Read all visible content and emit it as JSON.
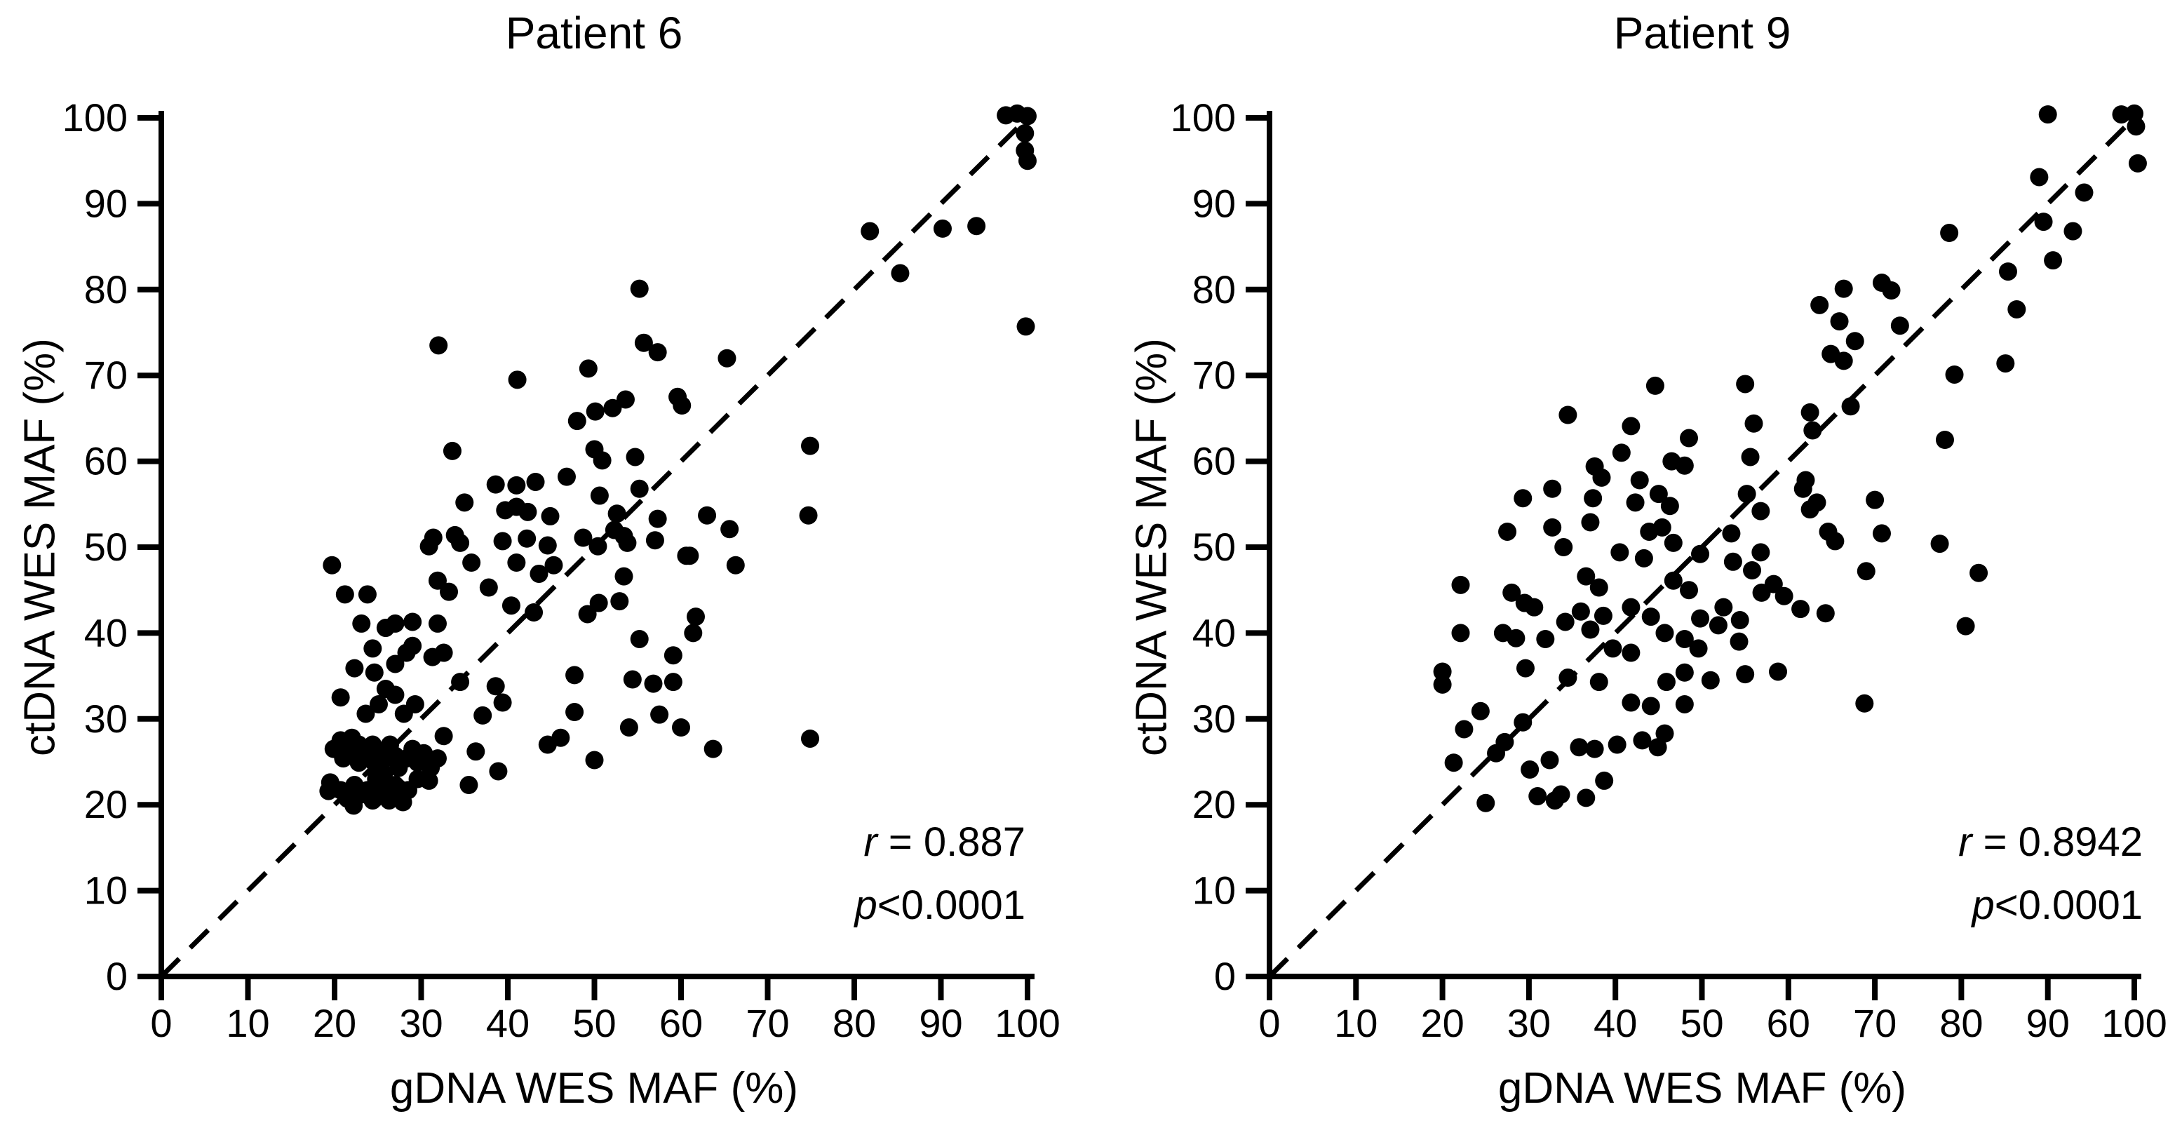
{
  "figure": {
    "background": "#ffffff",
    "ink_color": "#000000",
    "marker_color": "#000000"
  },
  "chart_data": [
    {
      "type": "scatter",
      "title": "Patient 6",
      "xlabel": "gDNA WES MAF (%)",
      "ylabel": "ctDNA WES MAF (%)",
      "xlim": [
        0,
        100
      ],
      "ylim": [
        0,
        100
      ],
      "xticks": [
        0,
        10,
        20,
        30,
        40,
        50,
        60,
        70,
        80,
        90,
        100
      ],
      "yticks": [
        0,
        10,
        20,
        30,
        40,
        50,
        60,
        70,
        80,
        90,
        100
      ],
      "grid": false,
      "identity_line": {
        "style": "dashed",
        "from": [
          0,
          0
        ],
        "to": [
          100,
          100
        ]
      },
      "annotation": {
        "line1": {
          "lead": "r",
          "rest": " = 0.887"
        },
        "line2": {
          "lead": "p",
          "rest": "<0.0001"
        }
      },
      "points": [
        [
          97.5,
          100.3
        ],
        [
          98.8,
          100.5
        ],
        [
          100,
          100.2
        ],
        [
          99.7,
          98.2
        ],
        [
          99.7,
          96.2
        ],
        [
          100,
          95
        ],
        [
          99.8,
          75.7
        ],
        [
          81.8,
          86.8
        ],
        [
          90.2,
          87.1
        ],
        [
          94.1,
          87.4
        ],
        [
          85.3,
          81.9
        ],
        [
          32,
          73.5
        ],
        [
          41.1,
          69.5
        ],
        [
          49.3,
          70.8
        ],
        [
          50.1,
          65.8
        ],
        [
          48,
          64.7
        ],
        [
          50,
          61.4
        ],
        [
          50.9,
          60.1
        ],
        [
          33.6,
          61.2
        ],
        [
          55.2,
          80.1
        ],
        [
          55.7,
          73.8
        ],
        [
          57.3,
          72.7
        ],
        [
          65.3,
          72
        ],
        [
          53.6,
          67.2
        ],
        [
          59.6,
          67.5
        ],
        [
          60.1,
          66.5
        ],
        [
          52.1,
          66.2
        ],
        [
          74.9,
          61.8
        ],
        [
          54.7,
          60.5
        ],
        [
          46.8,
          58.2
        ],
        [
          38.6,
          57.3
        ],
        [
          41,
          57.2
        ],
        [
          43.2,
          57.6
        ],
        [
          35,
          55.2
        ],
        [
          39.7,
          54.3
        ],
        [
          41,
          54.7
        ],
        [
          42.3,
          54.1
        ],
        [
          44.9,
          53.6
        ],
        [
          50.6,
          56
        ],
        [
          31.4,
          51.1
        ],
        [
          33.9,
          51.4
        ],
        [
          34.5,
          50.5
        ],
        [
          39.4,
          50.7
        ],
        [
          42.2,
          51
        ],
        [
          44.6,
          50.2
        ],
        [
          48.7,
          51.1
        ],
        [
          50.4,
          50.1
        ],
        [
          30.9,
          50.1
        ],
        [
          74.7,
          53.7
        ],
        [
          63,
          53.7
        ],
        [
          65.6,
          52.1
        ],
        [
          53.4,
          51.3
        ],
        [
          57,
          50.8
        ],
        [
          55.2,
          56.8
        ],
        [
          52.6,
          53.9
        ],
        [
          57.3,
          53.3
        ],
        [
          53.8,
          50.5
        ],
        [
          52.3,
          52
        ],
        [
          19.7,
          47.9
        ],
        [
          35.8,
          48.2
        ],
        [
          37.8,
          45.3
        ],
        [
          31.9,
          46.1
        ],
        [
          33.2,
          44.8
        ],
        [
          41,
          48.2
        ],
        [
          43.6,
          46.9
        ],
        [
          45.3,
          47.9
        ],
        [
          21.2,
          44.5
        ],
        [
          23.8,
          44.5
        ],
        [
          60.6,
          49
        ],
        [
          61,
          49
        ],
        [
          66.3,
          47.9
        ],
        [
          53.4,
          46.6
        ],
        [
          52.9,
          43.7
        ],
        [
          23.1,
          41.1
        ],
        [
          25.9,
          40.6
        ],
        [
          27,
          41.1
        ],
        [
          29,
          41.3
        ],
        [
          31.9,
          41.1
        ],
        [
          40.4,
          43.2
        ],
        [
          43,
          42.4
        ],
        [
          49.2,
          42.2
        ],
        [
          50.5,
          43.5
        ],
        [
          55.2,
          39.3
        ],
        [
          61.7,
          41.9
        ],
        [
          61.4,
          40
        ],
        [
          22.3,
          35.9
        ],
        [
          24.4,
          38.2
        ],
        [
          24.6,
          35.4
        ],
        [
          27,
          36.4
        ],
        [
          28.3,
          37.7
        ],
        [
          29,
          38.5
        ],
        [
          31.3,
          37.2
        ],
        [
          32.6,
          37.7
        ],
        [
          34.5,
          34.3
        ],
        [
          38.6,
          33.8
        ],
        [
          47.7,
          35.1
        ],
        [
          59.1,
          37.4
        ],
        [
          20.7,
          32.5
        ],
        [
          23.6,
          30.6
        ],
        [
          25.1,
          31.7
        ],
        [
          25.9,
          33.5
        ],
        [
          27,
          32.8
        ],
        [
          28,
          30.6
        ],
        [
          29.3,
          31.7
        ],
        [
          37.1,
          30.4
        ],
        [
          39.4,
          31.9
        ],
        [
          54.4,
          34.6
        ],
        [
          56.8,
          34.1
        ],
        [
          59.1,
          34.3
        ],
        [
          57.5,
          30.5
        ],
        [
          60,
          29
        ],
        [
          54,
          29
        ],
        [
          47.7,
          30.8
        ],
        [
          19.9,
          26.5
        ],
        [
          20.7,
          27.5
        ],
        [
          21,
          25.4
        ],
        [
          21.8,
          26.5
        ],
        [
          22,
          27.8
        ],
        [
          22.8,
          27
        ],
        [
          22.8,
          24.9
        ],
        [
          23.6,
          26
        ],
        [
          24.4,
          27
        ],
        [
          24.6,
          24.9
        ],
        [
          25.4,
          26.2
        ],
        [
          25.9,
          25.4
        ],
        [
          26.4,
          27
        ],
        [
          27,
          25.7
        ],
        [
          27.4,
          24.3
        ],
        [
          28.3,
          25.4
        ],
        [
          29,
          26.5
        ],
        [
          29.6,
          24.9
        ],
        [
          30.3,
          26
        ],
        [
          31.1,
          24.3
        ],
        [
          31.9,
          25.4
        ],
        [
          32.6,
          28
        ],
        [
          36.3,
          26.2
        ],
        [
          44.6,
          27
        ],
        [
          46.1,
          27.8
        ],
        [
          50,
          25.2
        ],
        [
          63.7,
          26.5
        ],
        [
          74.9,
          27.7
        ],
        [
          20.7,
          21.7
        ],
        [
          21.5,
          20.7
        ],
        [
          22.3,
          22.3
        ],
        [
          23.1,
          21.2
        ],
        [
          23.8,
          21.7
        ],
        [
          24.6,
          20.7
        ],
        [
          25.4,
          22
        ],
        [
          26.2,
          21.2
        ],
        [
          27,
          22.3
        ],
        [
          27.7,
          20.7
        ],
        [
          28.5,
          21.7
        ],
        [
          19.5,
          22.6
        ],
        [
          19.3,
          21.6
        ],
        [
          21.5,
          21.3
        ],
        [
          22.2,
          19.9
        ],
        [
          24.4,
          20.5
        ],
        [
          26.3,
          20.5
        ],
        [
          27.9,
          20.3
        ],
        [
          27.3,
          22
        ],
        [
          24.8,
          23
        ],
        [
          25.7,
          23.6
        ],
        [
          29.6,
          23
        ],
        [
          30.9,
          22.8
        ],
        [
          35.5,
          22.3
        ],
        [
          38.9,
          23.9
        ]
      ]
    },
    {
      "type": "scatter",
      "title": "Patient 9",
      "xlabel": "gDNA WES MAF (%)",
      "ylabel": "ctDNA WES MAF (%)",
      "xlim": [
        0,
        100
      ],
      "ylim": [
        0,
        100
      ],
      "xticks": [
        0,
        10,
        20,
        30,
        40,
        50,
        60,
        70,
        80,
        90,
        100
      ],
      "yticks": [
        0,
        10,
        20,
        30,
        40,
        50,
        60,
        70,
        80,
        90,
        100
      ],
      "grid": false,
      "identity_line": {
        "style": "dashed",
        "from": [
          0,
          0
        ],
        "to": [
          100,
          100
        ]
      },
      "annotation": {
        "line1": {
          "lead": "r",
          "rest": " = 0.8942"
        },
        "line2": {
          "lead": "p",
          "rest": "<0.0001"
        }
      },
      "points": [
        [
          90,
          100.4
        ],
        [
          98.5,
          100.4
        ],
        [
          100,
          100.5
        ],
        [
          100.2,
          99
        ],
        [
          100.4,
          94.7
        ],
        [
          89,
          93.1
        ],
        [
          94.2,
          91.3
        ],
        [
          89.5,
          87.9
        ],
        [
          92.9,
          86.8
        ],
        [
          90.6,
          83.4
        ],
        [
          85.4,
          82.1
        ],
        [
          78.6,
          86.6
        ],
        [
          86.4,
          77.7
        ],
        [
          66.4,
          80.1
        ],
        [
          70.8,
          80.8
        ],
        [
          71.9,
          79.9
        ],
        [
          63.6,
          78.2
        ],
        [
          65.9,
          76.3
        ],
        [
          72.9,
          75.8
        ],
        [
          67.7,
          74
        ],
        [
          64.9,
          72.5
        ],
        [
          66.4,
          71.7
        ],
        [
          85.1,
          71.4
        ],
        [
          79.2,
          70.1
        ],
        [
          67.2,
          66.4
        ],
        [
          78.1,
          62.5
        ],
        [
          55,
          69
        ],
        [
          56,
          64.4
        ],
        [
          55.6,
          60.5
        ],
        [
          62.5,
          65.7
        ],
        [
          62.8,
          63.6
        ],
        [
          44.6,
          68.8
        ],
        [
          34.5,
          65.4
        ],
        [
          41.8,
          64.1
        ],
        [
          40.7,
          61
        ],
        [
          37.6,
          59.4
        ],
        [
          38.4,
          58.1
        ],
        [
          48.5,
          62.7
        ],
        [
          46.5,
          60
        ],
        [
          48,
          59.5
        ],
        [
          42.8,
          57.8
        ],
        [
          45,
          56.2
        ],
        [
          46.3,
          54.8
        ],
        [
          29.3,
          55.7
        ],
        [
          32.7,
          56.8
        ],
        [
          37.4,
          55.7
        ],
        [
          42.3,
          55.2
        ],
        [
          32.7,
          52.3
        ],
        [
          37.1,
          52.9
        ],
        [
          43.9,
          51.8
        ],
        [
          45.4,
          52.3
        ],
        [
          46.7,
          50.5
        ],
        [
          40.5,
          49.4
        ],
        [
          27.5,
          51.8
        ],
        [
          62,
          57.8
        ],
        [
          61.7,
          56.8
        ],
        [
          62.5,
          54.4
        ],
        [
          63.3,
          55.2
        ],
        [
          64.6,
          51.8
        ],
        [
          65.4,
          50.7
        ],
        [
          55.2,
          56.2
        ],
        [
          56.8,
          54.2
        ],
        [
          53.4,
          51.6
        ],
        [
          56.8,
          49.4
        ],
        [
          70.8,
          51.6
        ],
        [
          70,
          55.5
        ],
        [
          77.5,
          50.4
        ],
        [
          69,
          47.2
        ],
        [
          53.6,
          48.3
        ],
        [
          55.8,
          47.3
        ],
        [
          58.3,
          45.7
        ],
        [
          56.9,
          44.7
        ],
        [
          59.5,
          44.3
        ],
        [
          61.4,
          42.8
        ],
        [
          64.3,
          42.3
        ],
        [
          52.5,
          43
        ],
        [
          51.9,
          40.9
        ],
        [
          54.4,
          41.5
        ],
        [
          54.3,
          39
        ],
        [
          43.3,
          48.7
        ],
        [
          46.7,
          46.1
        ],
        [
          48.5,
          45
        ],
        [
          49.8,
          49.2
        ],
        [
          34,
          50
        ],
        [
          22.1,
          45.6
        ],
        [
          28,
          44.7
        ],
        [
          29.5,
          43.5
        ],
        [
          30.6,
          43
        ],
        [
          36.6,
          46.6
        ],
        [
          38.1,
          45.3
        ],
        [
          41.8,
          43
        ],
        [
          44.1,
          41.9
        ],
        [
          34.2,
          41.3
        ],
        [
          36,
          42.5
        ],
        [
          37.1,
          40.4
        ],
        [
          38.6,
          42
        ],
        [
          45.7,
          40
        ],
        [
          48,
          39.3
        ],
        [
          49.6,
          38.2
        ],
        [
          49.8,
          41.7
        ],
        [
          82,
          47
        ],
        [
          80.5,
          40.8
        ],
        [
          22.1,
          40
        ],
        [
          27,
          40
        ],
        [
          28.5,
          39.4
        ],
        [
          31.9,
          39.3
        ],
        [
          39.7,
          38.2
        ],
        [
          41.8,
          37.7
        ],
        [
          34.5,
          34.8
        ],
        [
          20,
          35.5
        ],
        [
          20,
          34
        ],
        [
          29.6,
          35.9
        ],
        [
          38.1,
          34.3
        ],
        [
          45.9,
          34.3
        ],
        [
          48,
          35.4
        ],
        [
          51,
          34.5
        ],
        [
          55,
          35.2
        ],
        [
          58.8,
          35.5
        ],
        [
          48,
          31.7
        ],
        [
          68.8,
          31.8
        ],
        [
          24.4,
          30.9
        ],
        [
          22.5,
          28.8
        ],
        [
          29.3,
          29.6
        ],
        [
          26.2,
          26
        ],
        [
          27.2,
          27.3
        ],
        [
          21.3,
          24.9
        ],
        [
          30.1,
          24.1
        ],
        [
          32.4,
          25.2
        ],
        [
          41.8,
          31.9
        ],
        [
          44.1,
          31.5
        ],
        [
          45.7,
          28.3
        ],
        [
          35.8,
          26.7
        ],
        [
          37.6,
          26.5
        ],
        [
          40.2,
          27
        ],
        [
          43.1,
          27.5
        ],
        [
          44.9,
          26.7
        ],
        [
          38.7,
          22.8
        ],
        [
          25,
          20.2
        ],
        [
          31,
          21
        ],
        [
          33,
          20.5
        ],
        [
          36.6,
          20.8
        ],
        [
          33.7,
          21.2
        ]
      ]
    }
  ]
}
